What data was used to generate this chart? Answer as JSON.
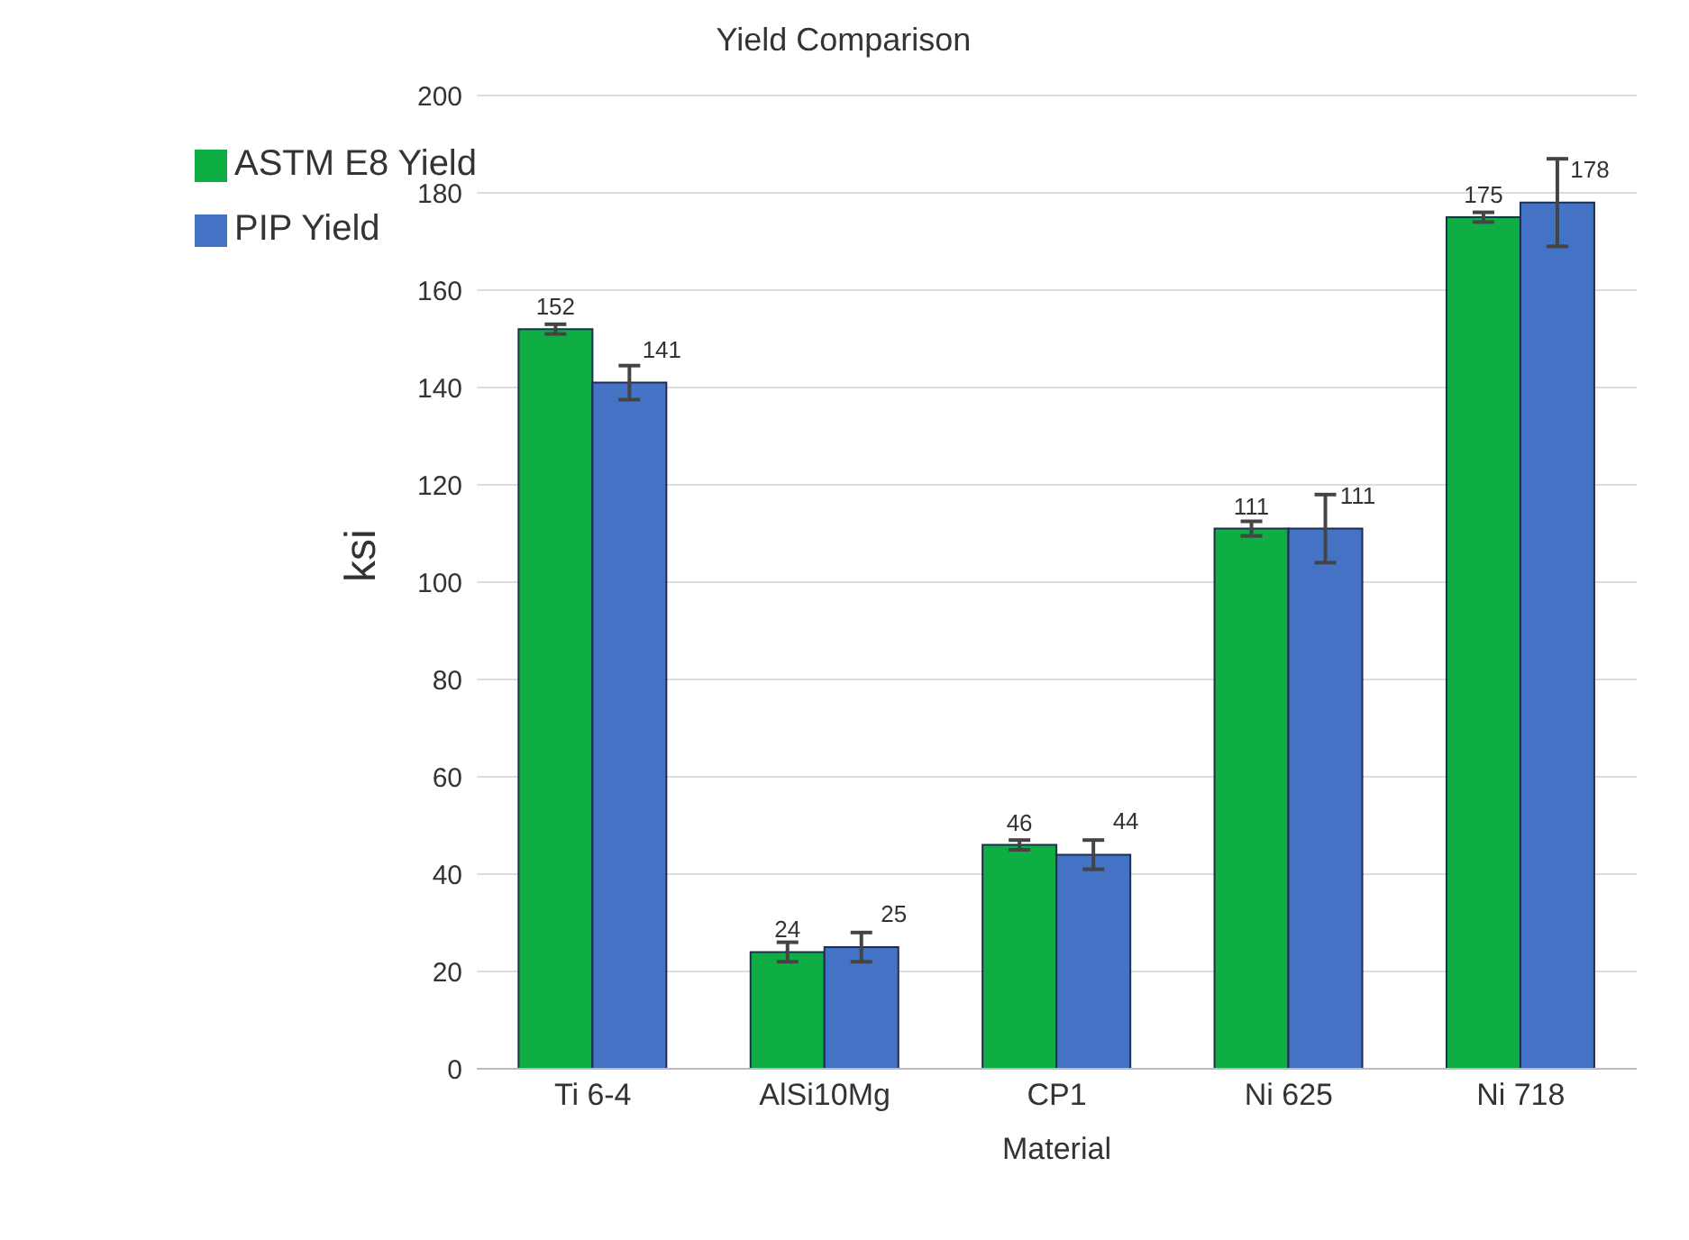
{
  "chart_data": {
    "type": "bar",
    "title": "Yield Comparison",
    "xlabel": "Material",
    "ylabel": "ksi",
    "categories": [
      "Ti 6-4",
      "AlSi10Mg",
      "CP1",
      "Ni 625",
      "Ni 718"
    ],
    "series": [
      {
        "name": "ASTM E8 Yield",
        "color": "#0fae45",
        "values": [
          152,
          24,
          46,
          111,
          175
        ],
        "errors": [
          1,
          2,
          1,
          1.5,
          1
        ]
      },
      {
        "name": "PIP Yield",
        "color": "#4472c4",
        "values": [
          141,
          25,
          44,
          111,
          178
        ],
        "errors": [
          3.5,
          3,
          3,
          7,
          9
        ]
      }
    ],
    "ylim": [
      0,
      200
    ],
    "yticks": [
      0,
      20,
      40,
      60,
      80,
      100,
      120,
      140,
      160,
      180,
      200
    ],
    "grid": "y",
    "legend": "top left",
    "data_labels": true
  }
}
